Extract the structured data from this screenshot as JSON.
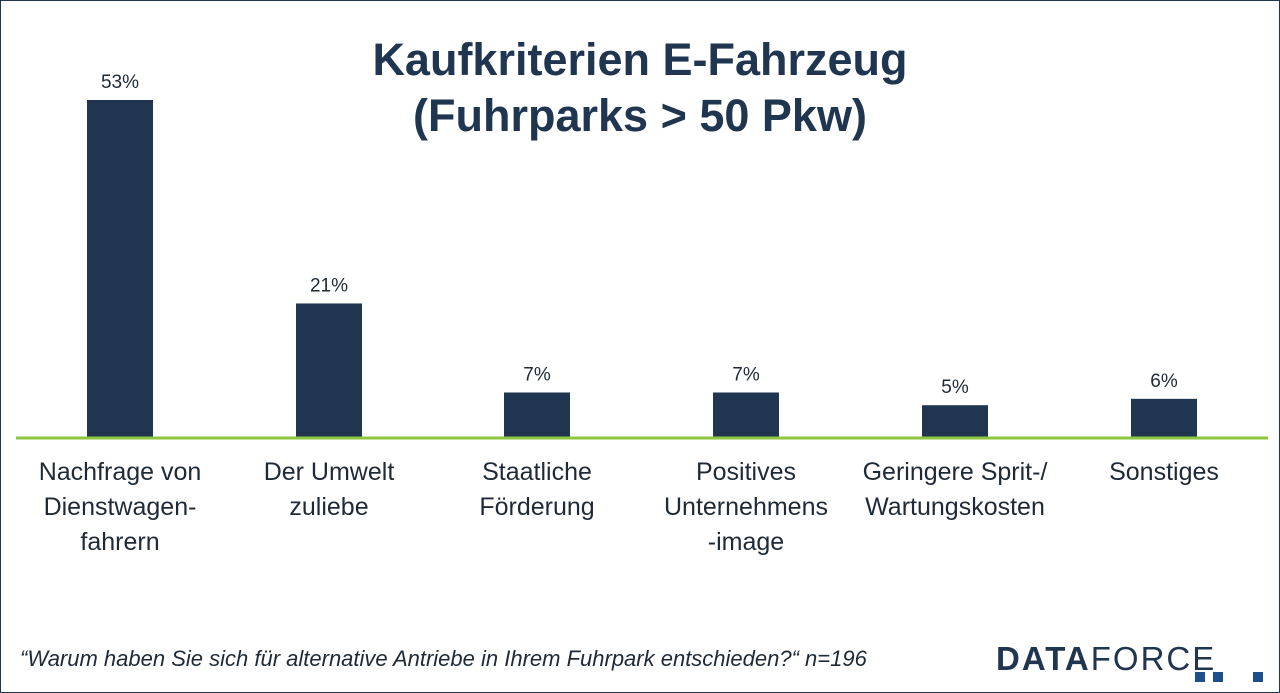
{
  "chart_data": {
    "type": "bar",
    "title": [
      "Kaufkriterien E-Fahrzeug",
      "(Fuhrparks > 50 Pkw)"
    ],
    "categories": [
      [
        "Nachfrage von",
        "Dienstwagen-",
        "fahrern"
      ],
      [
        "Der Umwelt",
        "zuliebe"
      ],
      [
        "Staatliche",
        "Förderung"
      ],
      [
        "Positives",
        "Unternehmens",
        "-image"
      ],
      [
        "Geringere Sprit-/",
        "Wartungskosten"
      ],
      [
        "Sonstiges"
      ]
    ],
    "values": [
      53,
      21,
      7,
      7,
      5,
      6
    ],
    "value_labels": [
      "53%",
      "21%",
      "7%",
      "7%",
      "5%",
      "6%"
    ],
    "ylim": [
      0,
      53
    ],
    "grid": false,
    "bar_color": "#1f3550",
    "baseline_color": "#8dc63f"
  },
  "footnote": "“Warum haben Sie sich für alternative Antriebe in Ihrem Fuhrpark entschieden?“ n=196",
  "logo": {
    "bold": "DATA",
    "light": "FORCE"
  }
}
